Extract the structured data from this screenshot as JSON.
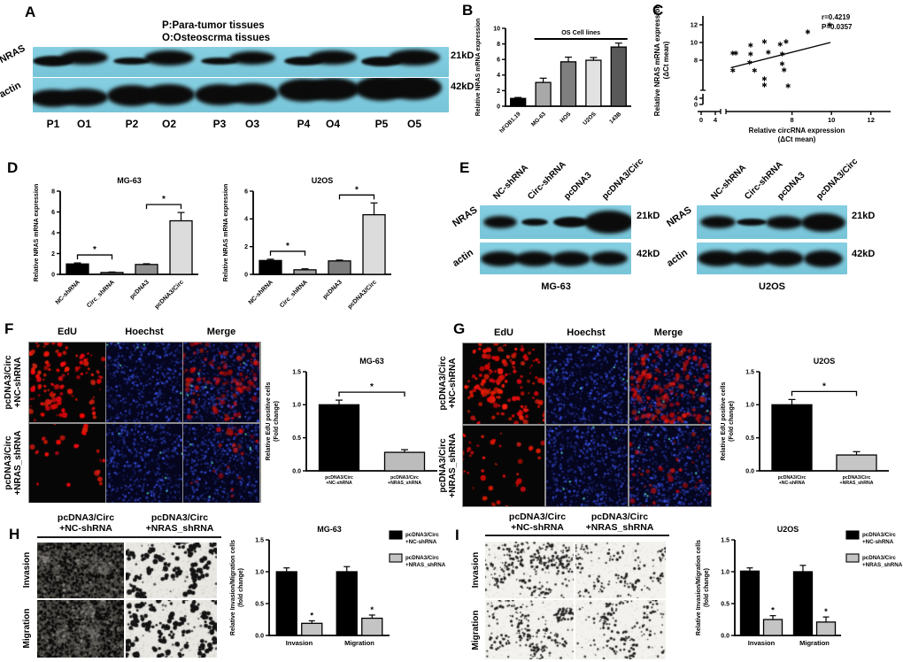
{
  "figure": {
    "panelA": {
      "label": "A",
      "legend": "P:Para-tumor tissues\nO:Osteoscrma tissues",
      "proteins": [
        "NRAS",
        "actin"
      ],
      "markers": [
        "21kD",
        "42kD"
      ],
      "lanes": [
        "P1",
        "O1",
        "P2",
        "O2",
        "P3",
        "O3",
        "P4",
        "O4",
        "P5",
        "O5"
      ]
    },
    "panelB": {
      "label": "B"
    },
    "panelC": {
      "label": "C"
    },
    "panelD": {
      "label": "D"
    },
    "panelE": {
      "label": "E",
      "lanes": [
        "NC-shRNA",
        "Circ-shRNA",
        "pcDNA3",
        "pcDNA3/Circ"
      ],
      "proteins": [
        "NRAS",
        "actin"
      ],
      "markers": [
        "21kD",
        "42kD"
      ],
      "cell_lines": [
        "MG-63",
        "U2OS"
      ]
    },
    "panelF": {
      "label": "F",
      "columns": [
        "EdU",
        "Hoechst",
        "Merge"
      ],
      "rows": [
        "pcDNA3/Circ\n+NC-shRNA",
        "pcDNA3/Circ\n+NRAS_shRNA"
      ]
    },
    "panelG": {
      "label": "G",
      "columns": [
        "EdU",
        "Hoechst",
        "Merge"
      ],
      "rows": [
        "pcDNA3/Circ\n+NC-shRNA",
        "pcDNA3/Circ\n+NRAS_shRNA"
      ]
    },
    "panelH": {
      "label": "H",
      "columns": [
        "pcDNA3/Circ\n+NC-shRNA",
        "pcDNA3/Circ\n+NRAS_shRNA"
      ],
      "rows": [
        "Invasion",
        "Migration"
      ]
    },
    "panelI": {
      "label": "I",
      "columns": [
        "pcDNA3/Circ\n+NC-shRNA",
        "pcDNA3/Circ\n+NRAS_shRNA"
      ],
      "rows": [
        "Invasion",
        "Migration"
      ]
    }
  },
  "chart_data": [
    {
      "id": "B",
      "type": "bar",
      "title": "",
      "ylabel": [
        "Relative NRAS mRNA expression"
      ],
      "categories": [
        "hFOB1.19",
        "MG-63",
        "HOS",
        "U2OS",
        "143B"
      ],
      "values": [
        1.0,
        3.05,
        5.7,
        5.9,
        7.6
      ],
      "errors": [
        0.12,
        0.55,
        0.6,
        0.35,
        0.5
      ],
      "colors": [
        "#000000",
        "#a8a8a8",
        "#7f7f7f",
        "#e2e2e2",
        "#595959"
      ],
      "ylim": [
        0,
        10
      ],
      "yticks": [
        "0",
        "2",
        "4",
        "6",
        "8",
        "10"
      ],
      "annotation": {
        "label": "OS Cell lines",
        "from": 1,
        "to": 4
      }
    },
    {
      "id": "C",
      "type": "scatter",
      "xlabel": [
        "Relative circRNA expression",
        "(ΔCt mean)"
      ],
      "ylabel": [
        "Relative NRAS mRNA expression",
        "(ΔCt mean)"
      ],
      "annotation": [
        "r=0.4219",
        "P=0.0357"
      ],
      "xticks": [
        0,
        4,
        8,
        10,
        12
      ],
      "yticks": [
        0,
        4,
        8,
        10,
        12
      ],
      "points": [
        [
          5.0,
          8.8
        ],
        [
          5.15,
          8.8
        ],
        [
          5.0,
          6.85
        ],
        [
          5.9,
          9.7
        ],
        [
          5.9,
          8.7
        ],
        [
          5.85,
          7.75
        ],
        [
          6.1,
          6.85
        ],
        [
          6.6,
          10.1
        ],
        [
          6.8,
          8.9
        ],
        [
          6.6,
          5.9
        ],
        [
          6.6,
          5.2
        ],
        [
          7.4,
          9.8
        ],
        [
          7.7,
          10.1
        ],
        [
          7.5,
          8.7
        ],
        [
          7.5,
          7.6
        ],
        [
          7.6,
          6.9
        ],
        [
          7.8,
          5.1
        ],
        [
          8.8,
          11.2
        ],
        [
          9.9,
          12.0
        ]
      ],
      "trend": [
        [
          4.9,
          7.15
        ],
        [
          9.95,
          10.0
        ]
      ]
    },
    {
      "id": "D1",
      "type": "bar",
      "title": "MG-63",
      "ylabel": [
        "Relative NRAS mRNA expression"
      ],
      "categories": [
        "NC-shRNA",
        "Circ_shRNA",
        "pcDNA3",
        "pcDNA3/Circ"
      ],
      "values": [
        1.0,
        0.18,
        0.95,
        5.15
      ],
      "errors": [
        0.1,
        0.05,
        0.07,
        0.8
      ],
      "colors": [
        "#000000",
        "#6b6b6b",
        "#8f8f8f",
        "#dcdcdc"
      ],
      "ylim": [
        0,
        8
      ],
      "yticks": [
        "0",
        "2",
        "4",
        "6",
        "8"
      ],
      "brackets": [
        {
          "a": 0,
          "b": 1,
          "label": "*"
        },
        {
          "a": 2,
          "b": 3,
          "label": "*"
        }
      ]
    },
    {
      "id": "D2",
      "type": "bar",
      "title": "U2OS",
      "ylabel": [
        "Relative NRAS mRNA expression"
      ],
      "categories": [
        "NC-shRNA",
        "Circ_shRNA",
        "pcDNA3",
        "pcDNA3/Circ"
      ],
      "values": [
        1.0,
        0.33,
        0.97,
        4.3
      ],
      "errors": [
        0.09,
        0.07,
        0.06,
        0.85
      ],
      "colors": [
        "#000000",
        "#a0a0a0",
        "#7d7d7d",
        "#dcdcdc"
      ],
      "ylim": [
        0,
        6
      ],
      "yticks": [
        "0",
        "2",
        "4",
        "6"
      ],
      "brackets": [
        {
          "a": 0,
          "b": 1,
          "label": "*"
        },
        {
          "a": 2,
          "b": 3,
          "label": "*"
        }
      ]
    },
    {
      "id": "F",
      "type": "bar",
      "title": "MG-63",
      "ylabel": [
        "Relative EdU positive cells",
        "(Fold change)"
      ],
      "categories": [
        "pcDNA3/Circ\n+NC-shRNA",
        "pcDNA3/Circ\n+NRAS_shRNA"
      ],
      "values": [
        1.0,
        0.28
      ],
      "errors": [
        0.07,
        0.04
      ],
      "colors": [
        "#000000",
        "#bcbcbc"
      ],
      "ylim": [
        0,
        1.5
      ],
      "yticks": [
        "0.0",
        "0.5",
        "1.0",
        "1.5"
      ],
      "brackets": [
        {
          "a": 0,
          "b": 1,
          "label": "*"
        }
      ]
    },
    {
      "id": "G",
      "type": "bar",
      "title": "U2OS",
      "ylabel": [
        "Relative EdU positive cells",
        "(Fold change)"
      ],
      "categories": [
        "pcDNA3/Circ\n+NC-shRNA",
        "pcDNA3/Circ\n+NRAS_shRNA"
      ],
      "values": [
        1.0,
        0.24
      ],
      "errors": [
        0.08,
        0.05
      ],
      "colors": [
        "#000000",
        "#c6c6c6"
      ],
      "ylim": [
        0,
        1.5
      ],
      "yticks": [
        "0.0",
        "0.5",
        "1.0",
        "1.5"
      ],
      "brackets": [
        {
          "a": 0,
          "b": 1,
          "label": "*"
        }
      ]
    },
    {
      "id": "H",
      "type": "grouped",
      "title": "MG-63",
      "ylabel": [
        "Relative Invasion/Migration cells",
        "(fold change)"
      ],
      "categories": [
        "Invasion",
        "Migration"
      ],
      "series": [
        {
          "name": "pcDNA3/Circ\n+NC-shRNA",
          "color": "#000000",
          "values": [
            1.0,
            1.0
          ],
          "errors": [
            0.06,
            0.08
          ]
        },
        {
          "name": "pcDNA3/Circ\n+NRAS_shRNA",
          "color": "#c4c4c4",
          "values": [
            0.19,
            0.27
          ],
          "errors": [
            0.04,
            0.05
          ],
          "sig": "*"
        }
      ],
      "ylim": [
        0,
        1.5
      ],
      "yticks": [
        "0.0",
        "0.5",
        "1.0",
        "1.5"
      ]
    },
    {
      "id": "I",
      "type": "grouped",
      "title": "U2OS",
      "ylabel": [
        "Relative Invasion/Migration cells",
        "(fold change)"
      ],
      "categories": [
        "Invasion",
        "Migration"
      ],
      "series": [
        {
          "name": "pcDNA3/Circ\n+NC-shRNA",
          "color": "#000000",
          "values": [
            1.01,
            1.0
          ],
          "errors": [
            0.05,
            0.1
          ]
        },
        {
          "name": "pcDNA3/Circ\n+NRAS_shRNA",
          "color": "#c4c4c4",
          "values": [
            0.25,
            0.21
          ],
          "errors": [
            0.06,
            0.08
          ],
          "sig": "*"
        }
      ],
      "ylim": [
        0,
        1.5
      ],
      "yticks": [
        "0.0",
        "0.5",
        "1.0",
        "1.5"
      ]
    }
  ]
}
